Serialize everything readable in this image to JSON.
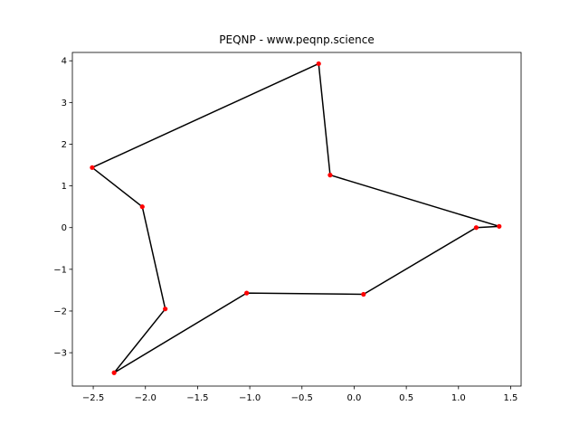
{
  "chart_data": {
    "type": "line",
    "title": "PEQNP - www.peqnp.science",
    "xlabel": "",
    "ylabel": "",
    "xlim": [
      -2.7,
      1.6
    ],
    "ylim": [
      -3.8,
      4.2
    ],
    "xticks": [
      -2.5,
      -2.0,
      -1.5,
      -1.0,
      -0.5,
      0.0,
      0.5,
      1.0,
      1.5
    ],
    "xtick_labels": [
      "−2.5",
      "−2.0",
      "−1.5",
      "−1.0",
      "−0.5",
      "0.0",
      "0.5",
      "1.0",
      "1.5"
    ],
    "yticks": [
      -3,
      -2,
      -1,
      0,
      1,
      2,
      3,
      4
    ],
    "ytick_labels": [
      "−3",
      "−2",
      "−1",
      "0",
      "1",
      "2",
      "3",
      "4"
    ],
    "grid": false,
    "legend": "none",
    "line_color": "#000000",
    "marker_color": "#ff0000",
    "closed": true,
    "series": [
      {
        "x": [
          -0.34,
          -0.23,
          1.39,
          1.17,
          0.09,
          -1.03,
          -2.3,
          -1.81,
          -2.03,
          -2.51,
          -0.34
        ],
        "y": [
          3.93,
          1.26,
          0.03,
          0.0,
          -1.6,
          -1.57,
          -3.48,
          -1.95,
          0.5,
          1.44,
          3.93
        ]
      }
    ]
  }
}
